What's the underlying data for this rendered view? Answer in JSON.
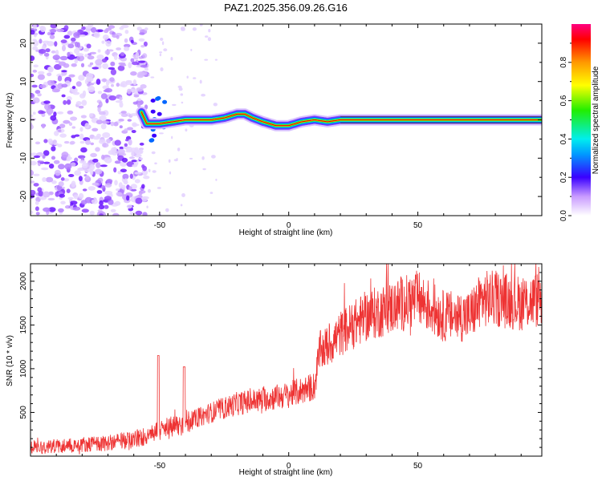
{
  "title": "PAZ1.2025.356.09.26.G16",
  "chart_data": [
    {
      "type": "heatmap",
      "name": "spectrogram",
      "xlabel": "Height of straight line (km)",
      "ylabel": "Frequency (Hz)",
      "xlim": [
        -100,
        98
      ],
      "ylim": [
        -25,
        25
      ],
      "xticks": [
        -50,
        0,
        50
      ],
      "yticks": [
        -20,
        -10,
        0,
        10,
        20
      ],
      "colorbar": {
        "label": "Normalized spectral amplitude",
        "range": [
          0,
          1
        ],
        "ticks": [
          "0.0",
          "0.2",
          "0.4",
          "0.6",
          "0.8"
        ],
        "tick_values": [
          0.0,
          0.2,
          0.4,
          0.6,
          0.8
        ]
      },
      "ridge": {
        "x": [
          -57,
          -55,
          -50,
          -45,
          -40,
          -35,
          -30,
          -25,
          -20,
          -17,
          -14,
          -10,
          -5,
          0,
          5,
          10,
          15,
          20,
          98
        ],
        "y": [
          2,
          -1,
          -1,
          -0.5,
          0,
          0,
          0,
          0.5,
          1.5,
          1.5,
          0.5,
          -0.5,
          -1.5,
          -1.5,
          -0.5,
          0,
          -0.5,
          0,
          0
        ]
      }
    },
    {
      "type": "line",
      "name": "snr",
      "xlabel": "Height of straight line (km)",
      "ylabel": "SNR (10 * v/v)",
      "xlim": [
        -100,
        98
      ],
      "ylim": [
        0,
        2200
      ],
      "xticks": [
        -50,
        0,
        50
      ],
      "yticks": [
        500,
        1000,
        1500,
        2000
      ],
      "color": "#ee3333",
      "trend": {
        "x": [
          -100,
          -70,
          -58,
          -52,
          -48,
          -40,
          -30,
          -20,
          -10,
          0,
          10,
          12,
          15,
          20,
          30,
          40,
          50,
          60,
          70,
          75,
          80,
          90,
          98
        ],
        "y": [
          100,
          150,
          200,
          280,
          300,
          380,
          500,
          600,
          650,
          700,
          800,
          1200,
          1250,
          1400,
          1600,
          1700,
          1800,
          1600,
          1600,
          1800,
          1800,
          1750,
          1800
        ]
      }
    }
  ]
}
